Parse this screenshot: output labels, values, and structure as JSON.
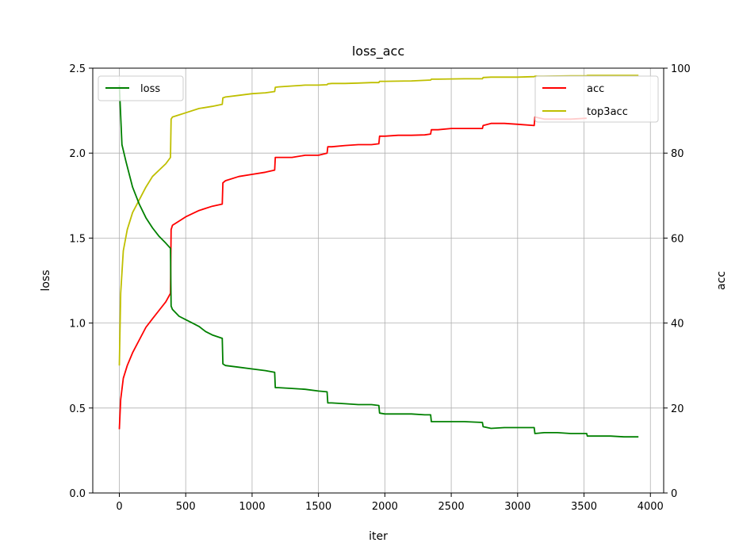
{
  "chart_data": {
    "type": "line",
    "title": "loss_acc",
    "xlabel": "iter",
    "ylabel_left": "loss",
    "ylabel_right": "acc",
    "xlim": [
      -200,
      4100
    ],
    "ylim_left": [
      0,
      2.5
    ],
    "ylim_right": [
      0,
      100
    ],
    "xticks": [
      0,
      500,
      1000,
      1500,
      2000,
      2500,
      3000,
      3500,
      4000
    ],
    "yticks_left": [
      "0.0",
      "0.5",
      "1.0",
      "1.5",
      "2.0",
      "2.5"
    ],
    "yticks_left_values": [
      0,
      0.5,
      1.0,
      1.5,
      2.0,
      2.5
    ],
    "yticks_right": [
      "0",
      "20",
      "40",
      "60",
      "80",
      "100"
    ],
    "yticks_right_values": [
      0,
      20,
      40,
      60,
      80,
      100
    ],
    "grid": true,
    "legend_left": {
      "position": "upper-left",
      "entries": [
        "loss"
      ]
    },
    "legend_right": {
      "position": "upper-right",
      "entries": [
        "acc",
        "top3acc"
      ]
    },
    "series": [
      {
        "name": "loss",
        "axis": "left",
        "color": "#008000",
        "x": [
          0,
          20,
          50,
          100,
          150,
          200,
          250,
          300,
          350,
          385,
          390,
          400,
          450,
          500,
          550,
          600,
          650,
          700,
          775,
          780,
          800,
          900,
          1000,
          1100,
          1170,
          1175,
          1200,
          1300,
          1400,
          1500,
          1565,
          1570,
          1600,
          1700,
          1800,
          1900,
          1955,
          1960,
          2000,
          2100,
          2200,
          2300,
          2345,
          2350,
          2400,
          2500,
          2600,
          2735,
          2740,
          2800,
          2900,
          3000,
          3125,
          3130,
          3200,
          3300,
          3400,
          3520,
          3525,
          3600,
          3700,
          3800,
          3910
        ],
        "y": [
          2.4,
          2.05,
          1.95,
          1.8,
          1.7,
          1.62,
          1.56,
          1.51,
          1.47,
          1.44,
          1.1,
          1.08,
          1.04,
          1.02,
          1.0,
          0.98,
          0.95,
          0.93,
          0.91,
          0.76,
          0.75,
          0.74,
          0.73,
          0.72,
          0.71,
          0.62,
          0.62,
          0.615,
          0.61,
          0.6,
          0.595,
          0.53,
          0.53,
          0.525,
          0.52,
          0.52,
          0.515,
          0.47,
          0.465,
          0.465,
          0.465,
          0.46,
          0.46,
          0.42,
          0.42,
          0.42,
          0.42,
          0.415,
          0.39,
          0.38,
          0.385,
          0.385,
          0.385,
          0.35,
          0.355,
          0.355,
          0.35,
          0.35,
          0.335,
          0.335,
          0.335,
          0.33,
          0.33
        ]
      },
      {
        "name": "acc",
        "axis": "right",
        "color": "#ff0000",
        "x": [
          0,
          10,
          30,
          60,
          100,
          150,
          200,
          250,
          300,
          350,
          385,
          390,
          400,
          450,
          500,
          600,
          700,
          775,
          780,
          800,
          900,
          1000,
          1100,
          1170,
          1175,
          1200,
          1300,
          1400,
          1500,
          1565,
          1570,
          1600,
          1700,
          1800,
          1900,
          1955,
          1960,
          2000,
          2100,
          2200,
          2300,
          2345,
          2350,
          2400,
          2500,
          2600,
          2735,
          2740,
          2800,
          2900,
          3000,
          3125,
          3130,
          3200,
          3300,
          3400,
          3520
        ],
        "y": [
          15,
          22,
          27,
          30,
          33,
          36,
          39,
          41,
          43,
          45,
          47,
          62,
          63,
          64,
          65,
          66.5,
          67.5,
          68,
          73,
          73.5,
          74.5,
          75,
          75.5,
          76,
          79,
          79,
          79,
          79.5,
          79.5,
          80,
          81.5,
          81.5,
          81.8,
          82,
          82,
          82.2,
          84,
          84,
          84.2,
          84.2,
          84.3,
          84.5,
          85.5,
          85.5,
          85.8,
          85.8,
          85.8,
          86.5,
          87,
          87,
          86.8,
          86.5,
          88.5,
          88,
          88,
          88,
          88.2
        ]
      },
      {
        "name": "top3acc",
        "axis": "right",
        "color": "#bfbf00",
        "x": [
          0,
          10,
          30,
          60,
          100,
          150,
          200,
          250,
          300,
          350,
          385,
          390,
          400,
          450,
          500,
          600,
          700,
          775,
          780,
          800,
          900,
          1000,
          1100,
          1170,
          1175,
          1200,
          1300,
          1400,
          1500,
          1565,
          1570,
          1600,
          1700,
          1800,
          1900,
          1955,
          1960,
          2000,
          2200,
          2345,
          2350,
          2400,
          2600,
          2735,
          2740,
          2800,
          3000,
          3125,
          3130,
          3200,
          3400,
          3520,
          3525,
          3700,
          3910
        ],
        "y": [
          30,
          47,
          57,
          62,
          66,
          69,
          72,
          74.5,
          76,
          77.5,
          79,
          88,
          88.5,
          89,
          89.5,
          90.5,
          91,
          91.5,
          93,
          93.2,
          93.6,
          94,
          94.2,
          94.5,
          95.5,
          95.6,
          95.8,
          96,
          96,
          96.1,
          96.3,
          96.4,
          96.4,
          96.5,
          96.6,
          96.6,
          96.9,
          96.9,
          97.0,
          97.2,
          97.4,
          97.4,
          97.5,
          97.5,
          97.8,
          97.9,
          97.9,
          98.0,
          98.1,
          98.1,
          98.2,
          98.2,
          98.3,
          98.3,
          98.3
        ]
      }
    ]
  }
}
